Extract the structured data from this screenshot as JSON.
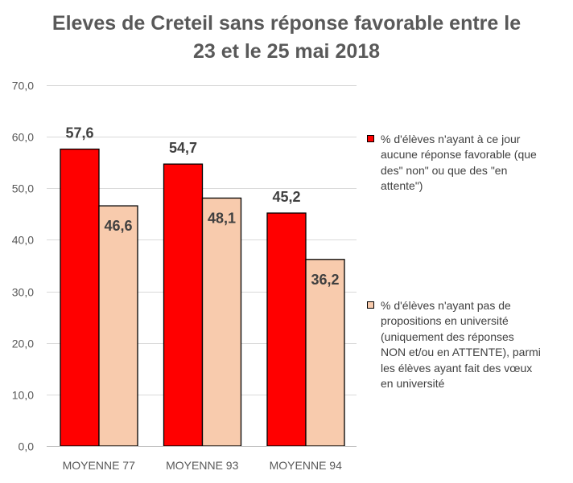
{
  "chart_data": {
    "type": "bar",
    "title_lines": [
      "Eleves de Creteil sans réponse favorable entre le",
      "23 et le 25 mai 2018"
    ],
    "categories": [
      "MOYENNE 77",
      "MOYENNE 93",
      "MOYENNE 94"
    ],
    "series": [
      {
        "name": "% d'élèves n'ayant à ce jour aucune réponse favorable (que des\" non\" ou que des \"en attente\")",
        "name_lines": [
          "% d'élèves n'ayant à ce jour",
          "aucune réponse favorable (que",
          "des\" non\" ou que des \"en",
          "attente\")"
        ],
        "values": [
          57.6,
          54.7,
          45.2
        ],
        "labels": [
          "57,6",
          "54,7",
          "45,2"
        ],
        "color": "#ff0000"
      },
      {
        "name": "% d'élèves n'ayant pas de propositions en université (uniquement des réponses NON et/ou en ATTENTE), parmi les élèves ayant fait des vœux en université",
        "name_lines": [
          "% d'élèves n'ayant pas de",
          "propositions en université",
          "(uniquement des réponses",
          "NON et/ou en ATTENTE), parmi",
          "les élèves ayant fait des vœux",
          "en université"
        ],
        "values": [
          46.6,
          48.1,
          36.2
        ],
        "labels": [
          "46,6",
          "48,1",
          "36,2"
        ],
        "color": "#f8cbad"
      }
    ],
    "ylim": [
      0,
      70
    ],
    "yticks": [
      0,
      10,
      20,
      30,
      40,
      50,
      60,
      70
    ],
    "ytick_labels": [
      "0,0",
      "10,0",
      "20,0",
      "30,0",
      "40,0",
      "50,0",
      "60,0",
      "70,0"
    ],
    "grid": true,
    "legend_position": "right",
    "xlabel": "",
    "ylabel": ""
  }
}
